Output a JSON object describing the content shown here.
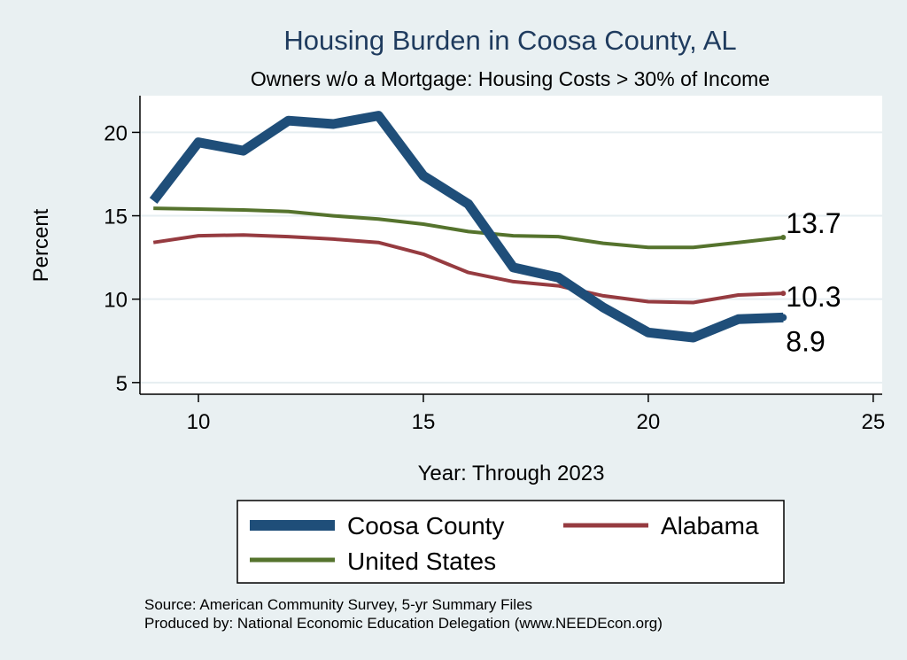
{
  "chart_data": {
    "type": "line",
    "title": "Housing Burden in Coosa County, AL",
    "subtitle": "Owners w/o a Mortgage: Housing Costs > 30% of Income",
    "xlabel": "Year: Through 2023",
    "ylabel": "Percent",
    "xlim": [
      8.7,
      25.2
    ],
    "ylim": [
      4.3,
      22.2
    ],
    "xticks": [
      10,
      15,
      20,
      25
    ],
    "yticks": [
      5,
      10,
      15,
      20
    ],
    "x": [
      9,
      10,
      11,
      12,
      13,
      14,
      15,
      16,
      17,
      18,
      19,
      20,
      21,
      22,
      23
    ],
    "series": [
      {
        "name": "Coosa County",
        "color": "#1f4e79",
        "values": [
          15.9,
          19.4,
          18.9,
          20.7,
          20.5,
          21.0,
          17.4,
          15.7,
          11.9,
          11.3,
          9.5,
          8.0,
          7.7,
          8.8,
          8.9
        ],
        "end_label": "8.9"
      },
      {
        "name": "Alabama",
        "color": "#963b40",
        "values": [
          13.4,
          13.8,
          13.85,
          13.75,
          13.6,
          13.4,
          12.7,
          11.6,
          11.05,
          10.8,
          10.2,
          9.85,
          9.8,
          10.25,
          10.35
        ],
        "end_label": "10.3"
      },
      {
        "name": "United States",
        "color": "#55732d",
        "values": [
          15.45,
          15.4,
          15.35,
          15.25,
          15.0,
          14.8,
          14.5,
          14.05,
          13.8,
          13.75,
          13.35,
          13.1,
          13.1,
          13.4,
          13.7
        ],
        "end_label": "13.7"
      }
    ],
    "legend": {
      "placement": "bottom",
      "entries": [
        "Coosa County",
        "Alabama",
        "United States"
      ]
    },
    "notes": [
      "Source: American Community Survey, 5-yr Summary Files",
      "Produced by: National Economic Education Delegation (www.NEEDEcon.org)"
    ]
  },
  "colors": {
    "background": "#e9f0f2",
    "plot_background": "#ffffff",
    "grid": "#e6eef1",
    "title": "#1f3b5e"
  }
}
